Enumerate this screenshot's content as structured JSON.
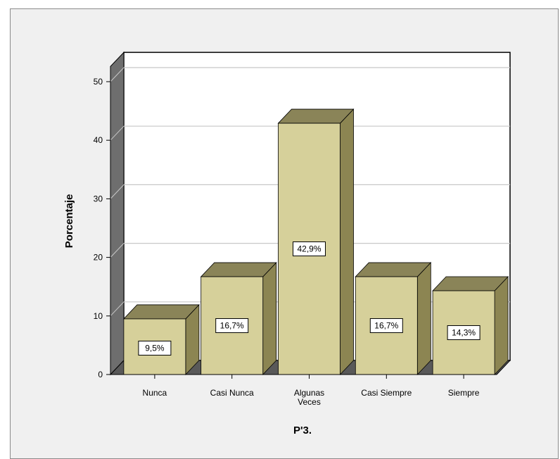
{
  "chart_data": {
    "type": "bar",
    "style": "3d",
    "categories": [
      "Nunca",
      "Casi Nunca",
      "Algunas Veces",
      "Casi Siempre",
      "Siempre"
    ],
    "values": [
      9.5,
      16.7,
      42.9,
      16.7,
      14.3
    ],
    "data_labels": [
      "9,5%",
      "16,7%",
      "42,9%",
      "16,7%",
      "14,3%"
    ],
    "ylabel": "Porcentaje",
    "xlabel": "P'3.",
    "ylim": [
      0,
      50
    ],
    "yticks": [
      "0",
      "10",
      "20",
      "30",
      "40",
      "50"
    ],
    "grid": true,
    "colors": {
      "bar_front": "#d6d09a",
      "bar_side": "#8c8552",
      "bar_top": "#8a8458",
      "wall": "#ffffff",
      "floor": "#595959",
      "left_wall": "#6e6e6e",
      "grid": "#c8c8c8"
    }
  }
}
